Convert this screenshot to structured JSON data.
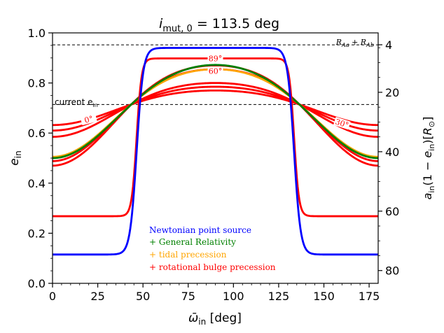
{
  "chart_data": {
    "type": "line",
    "title": "i_mut,0 = 113.5 deg",
    "title_main": "i",
    "title_sub": "mut, 0",
    "title_rest": " = 113.5 deg",
    "xlabel_main": "ω̄",
    "xlabel_sub": "in",
    "xlabel_rest": " [deg]",
    "ylabel_main": "e",
    "ylabel_sub": "in",
    "y2label": "a_in(1 − e_in)[R_⊙]",
    "xlim": [
      0,
      180
    ],
    "ylim": [
      0.0,
      1.0
    ],
    "xticks": [
      0,
      25,
      50,
      75,
      100,
      125,
      150,
      175
    ],
    "yticks": [
      0.0,
      0.2,
      0.4,
      0.6,
      0.8,
      1.0
    ],
    "y2ticks": [
      4,
      20,
      40,
      60,
      80
    ],
    "y2_mapping_note": "e = 1 - v/84.3",
    "grid": false,
    "reference_lines": [
      {
        "label": "R_Aa + R_Ab",
        "y": 0.952
      },
      {
        "label": "current e_in",
        "y": 0.714
      }
    ],
    "colors": {
      "newtonian": "#0000ff",
      "gr": "#008000",
      "tidal": "#ffa500",
      "rotational": "#ff0000"
    },
    "series": [
      {
        "name": "Newtonian point source",
        "color": "newtonian",
        "kind": "steep",
        "low": 0.115,
        "high": 0.94,
        "k": 1.0,
        "x": [
          0,
          45,
          90,
          135,
          180
        ]
      },
      {
        "name": "General Relativity",
        "color": "gr",
        "kind": "smooth",
        "edge": 0.5,
        "peak": 0.872,
        "x": [
          0,
          43.5,
          90,
          136.5,
          180
        ]
      },
      {
        "name": "tidal precession",
        "color": "tidal",
        "kind": "smooth",
        "edge": 0.505,
        "peak": 0.855,
        "x": [
          0,
          43.5,
          90,
          136.5,
          180
        ]
      },
      {
        "name": "rotational bulge precession",
        "color": "rotational",
        "kind": "steep",
        "low": 0.268,
        "high": 0.898,
        "k": 0.75,
        "label": "89°",
        "x": [
          0,
          45,
          90,
          135,
          180
        ]
      },
      {
        "color": "rotational",
        "kind": "smooth",
        "edge": 0.47,
        "peak": 0.87,
        "label": "60°"
      },
      {
        "color": "rotational",
        "kind": "smooth",
        "edge": 0.488,
        "peak": 0.855
      },
      {
        "color": "rotational",
        "kind": "smooth",
        "edge": 0.585,
        "peak": 0.8
      },
      {
        "color": "rotational",
        "kind": "smooth",
        "edge": 0.61,
        "peak": 0.785,
        "label": "30°"
      },
      {
        "color": "rotational",
        "kind": "smooth",
        "edge": 0.632,
        "peak": 0.77,
        "label": "0°"
      }
    ]
  }
}
